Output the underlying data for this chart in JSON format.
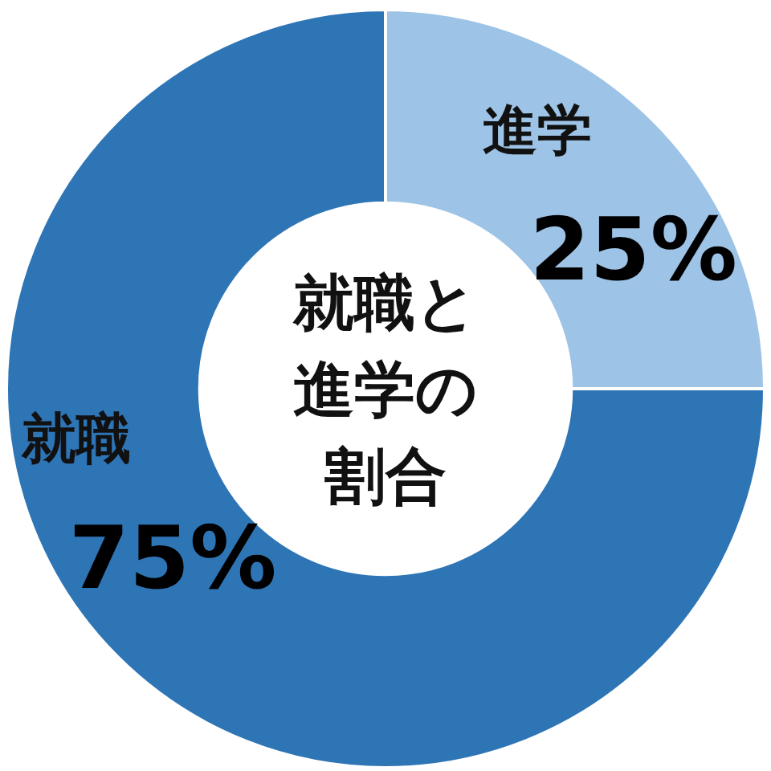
{
  "chart_data": {
    "type": "donut",
    "title": "就職と進学の割合",
    "categories": [
      "進学",
      "就職"
    ],
    "values": [
      25,
      75
    ],
    "colors": [
      "#9dc3e6",
      "#2e75b6"
    ],
    "value_labels": [
      "25%",
      "75%"
    ]
  }
}
